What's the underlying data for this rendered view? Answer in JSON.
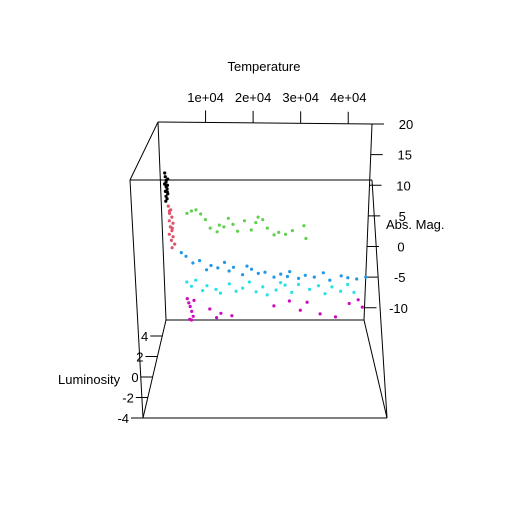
{
  "chart_data": {
    "type": "scatter",
    "title": "",
    "axes": {
      "temperature": {
        "label": "Temperature",
        "ticks": [
          "1e+04",
          "2e+04",
          "3e+04",
          "4e+04"
        ],
        "tick_values": [
          10000,
          20000,
          30000,
          40000
        ],
        "range": [
          0,
          45000
        ]
      },
      "abs_mag": {
        "label": "Abs. Mag.",
        "ticks": [
          "20",
          "15",
          "10",
          "5",
          "0",
          "-5",
          "-10"
        ],
        "tick_values": [
          20,
          15,
          10,
          5,
          0,
          -5,
          -10
        ],
        "range": [
          -12,
          20
        ]
      },
      "luminosity": {
        "label": "Luminosity",
        "ticks": [
          "4",
          "2",
          "0",
          "-2",
          "-4"
        ],
        "tick_values": [
          4,
          2,
          0,
          -2,
          -4
        ],
        "range": [
          -4,
          4
        ]
      }
    },
    "grid": false,
    "legend": "none",
    "series": [
      {
        "color": "#000000",
        "points": [
          [
            1000,
            12.0
          ],
          [
            1100,
            11.4
          ],
          [
            1300,
            10.8
          ],
          [
            900,
            10.2
          ],
          [
            1200,
            9.8
          ],
          [
            1400,
            9.4
          ],
          [
            1000,
            9.0
          ],
          [
            1500,
            8.6
          ],
          [
            1100,
            8.2
          ],
          [
            1300,
            7.8
          ],
          [
            1600,
            11.0
          ],
          [
            1200,
            10.5
          ],
          [
            1400,
            8.9
          ],
          [
            1000,
            7.4
          ],
          [
            1500,
            10.0
          ]
        ]
      },
      {
        "color": "#DF536B",
        "points": [
          [
            1500,
            6.6
          ],
          [
            2000,
            6.0
          ],
          [
            1700,
            5.4
          ],
          [
            2200,
            4.8
          ],
          [
            1600,
            4.2
          ],
          [
            2400,
            3.8
          ],
          [
            1800,
            3.2
          ],
          [
            2100,
            2.6
          ],
          [
            1500,
            2.0
          ],
          [
            2300,
            1.6
          ],
          [
            1900,
            1.0
          ],
          [
            2600,
            0.4
          ],
          [
            2000,
            -0.2
          ],
          [
            1700,
            5.8
          ],
          [
            2200,
            3.0
          ]
        ]
      },
      {
        "color": "#61D04F",
        "points": [
          [
            5500,
            5.4
          ],
          [
            6500,
            5.8
          ],
          [
            7500,
            6.0
          ],
          [
            8500,
            5.3
          ],
          [
            9500,
            4.4
          ],
          [
            10500,
            3.0
          ],
          [
            12000,
            2.4
          ],
          [
            13500,
            3.2
          ],
          [
            14500,
            4.6
          ],
          [
            15500,
            3.6
          ],
          [
            16500,
            2.5
          ],
          [
            18000,
            4.2
          ],
          [
            19500,
            2.7
          ],
          [
            20500,
            3.9
          ],
          [
            22000,
            4.4
          ],
          [
            23000,
            3.0
          ],
          [
            24500,
            1.9
          ],
          [
            25500,
            2.3
          ],
          [
            27000,
            2.0
          ],
          [
            28500,
            2.6
          ],
          [
            31000,
            3.4
          ],
          [
            31500,
            1.3
          ],
          [
            12500,
            3.5
          ],
          [
            21000,
            4.8
          ]
        ]
      },
      {
        "color": "#2297E6",
        "points": [
          [
            4000,
            -1.0
          ],
          [
            5000,
            -1.6
          ],
          [
            6500,
            -2.7
          ],
          [
            8000,
            -2.3
          ],
          [
            9500,
            -3.8
          ],
          [
            10500,
            -3.1
          ],
          [
            12000,
            -3.5
          ],
          [
            13500,
            -2.6
          ],
          [
            14500,
            -4.0
          ],
          [
            15500,
            -3.4
          ],
          [
            17500,
            -4.6
          ],
          [
            19500,
            -3.7
          ],
          [
            21000,
            -4.4
          ],
          [
            22500,
            -4.2
          ],
          [
            24500,
            -5.0
          ],
          [
            26000,
            -4.5
          ],
          [
            28000,
            -4.1
          ],
          [
            30000,
            -5.2
          ],
          [
            31500,
            -4.7
          ],
          [
            33500,
            -5.0
          ],
          [
            35500,
            -4.3
          ],
          [
            37000,
            -5.5
          ],
          [
            39500,
            -4.8
          ],
          [
            41000,
            -5.1
          ],
          [
            43000,
            -5.3
          ],
          [
            45000,
            -5.0
          ],
          [
            18500,
            -3.2
          ],
          [
            27500,
            -4.9
          ]
        ]
      },
      {
        "color": "#28E2E5",
        "points": [
          [
            5000,
            -5.8
          ],
          [
            6000,
            -6.5
          ],
          [
            7000,
            -5.5
          ],
          [
            8500,
            -7.2
          ],
          [
            9500,
            -6.4
          ],
          [
            11500,
            -7.0
          ],
          [
            12500,
            -7.6
          ],
          [
            14500,
            -6.1
          ],
          [
            16000,
            -7.3
          ],
          [
            17500,
            -6.8
          ],
          [
            19000,
            -5.8
          ],
          [
            20500,
            -7.4
          ],
          [
            22000,
            -6.6
          ],
          [
            23000,
            -7.9
          ],
          [
            25000,
            -7.1
          ],
          [
            27000,
            -6.3
          ],
          [
            28500,
            -7.5
          ],
          [
            30000,
            -6.2
          ],
          [
            32500,
            -7.0
          ],
          [
            34500,
            -6.4
          ],
          [
            36000,
            -7.7
          ],
          [
            37500,
            -6.6
          ],
          [
            39500,
            -7.3
          ],
          [
            41000,
            -6.2
          ],
          [
            42500,
            -7.5
          ],
          [
            26000,
            -5.9
          ]
        ]
      },
      {
        "color": "#CD0BBC",
        "points": [
          [
            5000,
            -8.5
          ],
          [
            5300,
            -9.2
          ],
          [
            5600,
            -9.8
          ],
          [
            5900,
            -10.6
          ],
          [
            6200,
            -11.4
          ],
          [
            6500,
            -8.8
          ],
          [
            5400,
            -11.9
          ],
          [
            5800,
            -12.0
          ],
          [
            10000,
            -10.2
          ],
          [
            11500,
            -11.6
          ],
          [
            12500,
            -10.9
          ],
          [
            15000,
            -11.3
          ],
          [
            24500,
            -9.7
          ],
          [
            28000,
            -8.9
          ],
          [
            30500,
            -10.4
          ],
          [
            35000,
            -11.0
          ],
          [
            38500,
            -11.5
          ],
          [
            41500,
            -9.3
          ],
          [
            43500,
            -8.7
          ],
          [
            44500,
            -9.9
          ],
          [
            32000,
            -9.1
          ]
        ]
      }
    ]
  }
}
